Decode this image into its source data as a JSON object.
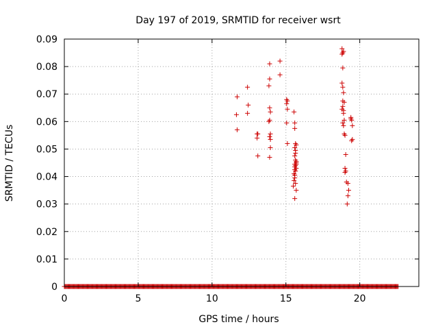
{
  "chart_data": {
    "type": "scatter",
    "title": "Day 197 of 2019, SRMTID for receiver wsrt",
    "xlabel": "GPS time / hours",
    "ylabel": "SRMTID / TECUs",
    "xlim": [
      0,
      24
    ],
    "ylim": [
      0,
      0.09
    ],
    "xticks": [
      0,
      5,
      10,
      15,
      20
    ],
    "xtick_labels": [
      "0",
      "5",
      "10",
      "15",
      "20"
    ],
    "yticks": [
      0,
      0.01,
      0.02,
      0.03,
      0.04,
      0.05,
      0.06,
      0.07,
      0.08,
      0.09
    ],
    "ytick_labels": [
      "0",
      "0.01",
      "0.02",
      "0.03",
      "0.04",
      "0.05",
      "0.06",
      "0.07",
      "0.08",
      "0.09"
    ],
    "grid": true,
    "marker": "+",
    "color": "#cc0000",
    "zero_baseline_x_range": [
      0,
      22.6
    ],
    "series": [
      {
        "name": "SRMTID",
        "x": [
          11.7,
          11.65,
          11.7,
          12.4,
          12.45,
          12.4,
          13.05,
          13.05,
          13.1,
          13.1,
          13.9,
          13.9,
          13.85,
          13.9,
          13.95,
          13.9,
          13.85,
          13.95,
          13.9,
          13.95,
          13.95,
          13.9,
          14.6,
          14.6,
          15.05,
          15.05,
          15.1,
          15.05,
          15.1,
          15.1,
          15.55,
          15.6,
          15.6,
          15.65,
          15.6,
          15.65,
          15.7,
          15.6,
          15.65,
          15.7,
          15.6,
          15.65,
          15.7,
          15.6,
          15.65,
          15.7,
          15.6,
          15.55,
          15.6,
          15.65,
          15.7,
          15.6,
          15.5,
          15.55,
          15.6,
          15.7,
          15.65,
          18.8,
          18.85,
          18.9,
          18.8,
          18.85,
          18.8,
          18.85,
          18.9,
          18.85,
          18.95,
          18.9,
          18.8,
          18.85,
          18.9,
          18.95,
          18.85,
          18.9,
          18.95,
          19.0,
          19.05,
          19.0,
          19.05,
          19.1,
          19.0,
          19.2,
          19.25,
          19.2,
          19.15,
          19.4,
          19.45,
          19.5,
          19.45,
          19.5,
          19.4
        ],
        "y": [
          0.069,
          0.0625,
          0.057,
          0.0725,
          0.066,
          0.063,
          0.0555,
          0.054,
          0.0475,
          0.0555,
          0.081,
          0.0755,
          0.073,
          0.065,
          0.0635,
          0.0605,
          0.06,
          0.0555,
          0.0545,
          0.0535,
          0.0505,
          0.047,
          0.082,
          0.077,
          0.068,
          0.0665,
          0.0645,
          0.0595,
          0.052,
          0.0675,
          0.0635,
          0.0595,
          0.0575,
          0.052,
          0.0505,
          0.0495,
          0.0515,
          0.0475,
          0.046,
          0.045,
          0.0445,
          0.044,
          0.043,
          0.0425,
          0.042,
          0.0445,
          0.0405,
          0.0385,
          0.0395,
          0.0375,
          0.035,
          0.032,
          0.0365,
          0.041,
          0.0435,
          0.0455,
          0.0485,
          0.0865,
          0.085,
          0.0855,
          0.0845,
          0.0795,
          0.074,
          0.0725,
          0.0705,
          0.0675,
          0.067,
          0.064,
          0.0645,
          0.0655,
          0.063,
          0.0605,
          0.0595,
          0.0585,
          0.0555,
          0.055,
          0.048,
          0.043,
          0.042,
          0.038,
          0.0415,
          0.0375,
          0.035,
          0.033,
          0.03,
          0.061,
          0.0605,
          0.0585,
          0.053,
          0.0535,
          0.0615
        ]
      }
    ]
  }
}
